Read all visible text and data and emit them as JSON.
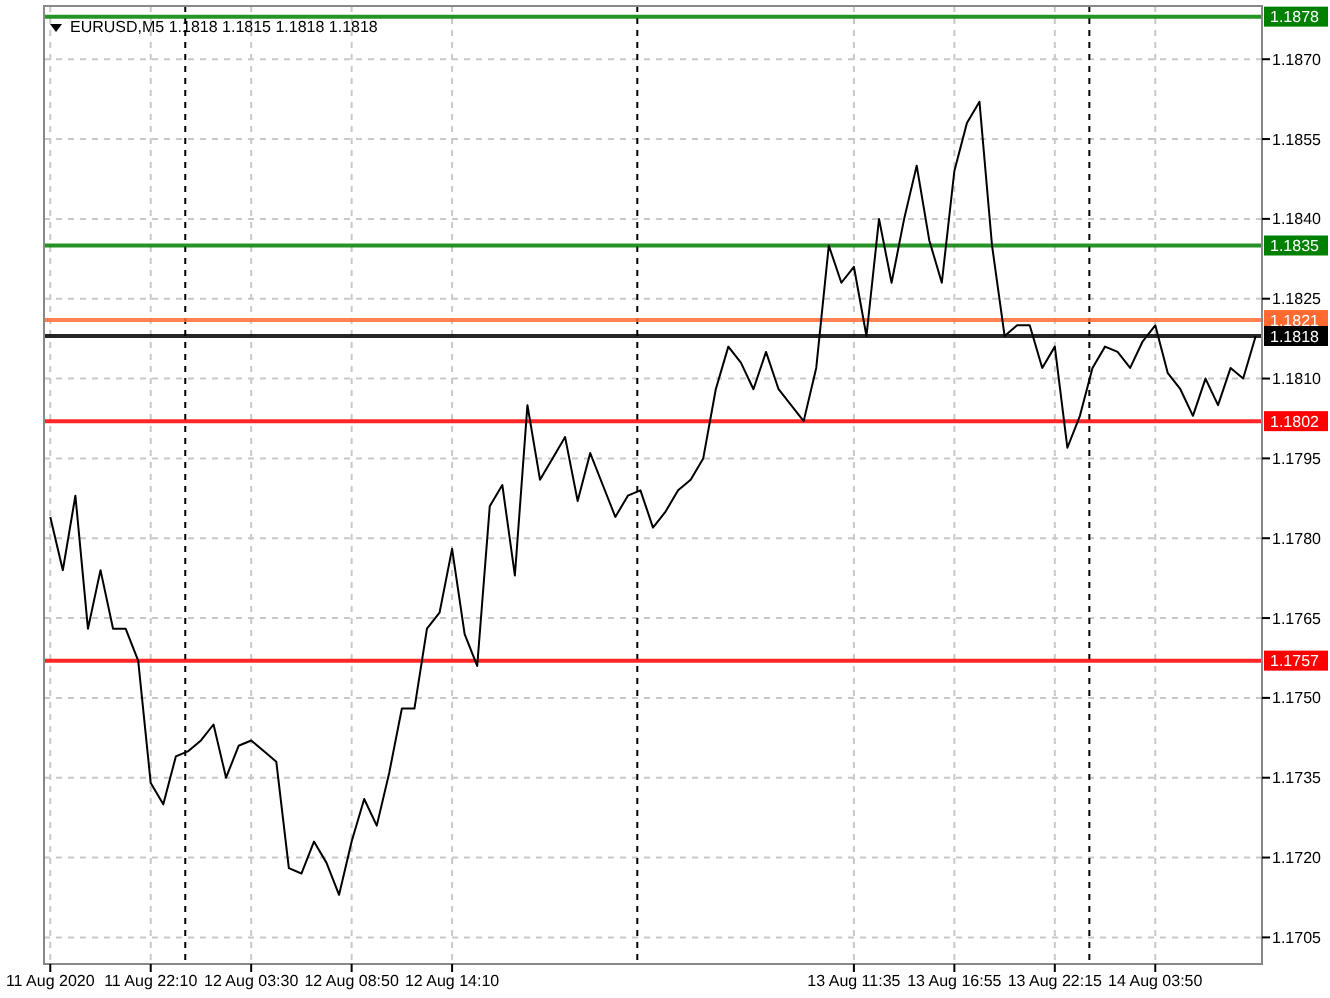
{
  "chart_data": {
    "type": "line",
    "title": "EURUSD,M5  1.1818 1.1815 1.1818 1.1818",
    "categories": [
      "11 Aug 2020",
      null,
      null,
      null,
      null,
      null,
      null,
      null,
      "11 Aug 22:10",
      null,
      null,
      null,
      null,
      null,
      null,
      null,
      "12 Aug 03:30",
      null,
      null,
      null,
      null,
      null,
      null,
      null,
      "12 Aug 08:50",
      null,
      null,
      null,
      null,
      null,
      null,
      null,
      "12 Aug 14:10",
      null,
      null,
      null,
      null,
      null,
      null,
      null,
      null,
      null,
      null,
      null,
      null,
      null,
      null,
      null,
      null,
      null,
      null,
      null,
      null,
      null,
      null,
      null,
      null,
      null,
      null,
      null,
      null,
      null,
      null,
      null,
      "13 Aug 11:35",
      null,
      null,
      null,
      null,
      null,
      null,
      null,
      "13 Aug 16:55",
      null,
      null,
      null,
      null,
      null,
      null,
      null,
      "13 Aug 22:15",
      null,
      null,
      null,
      null,
      null,
      null,
      null,
      "14 Aug 03:50",
      null,
      null,
      null,
      null,
      null,
      null,
      null,
      null
    ],
    "series": [
      {
        "color": "#000000",
        "values": [
          1.1784,
          1.1774,
          1.1788,
          1.1763,
          1.1774,
          1.1763,
          1.1763,
          1.1757,
          1.1734,
          1.173,
          1.1739,
          1.174,
          1.1742,
          1.1745,
          1.1735,
          1.1741,
          1.1742,
          1.174,
          1.1738,
          1.1718,
          1.1717,
          1.1723,
          1.1719,
          1.1713,
          1.1723,
          1.1731,
          1.1726,
          1.1736,
          1.1748,
          1.1748,
          1.1763,
          1.1766,
          1.1778,
          1.1762,
          1.1756,
          1.1786,
          1.179,
          1.1773,
          1.1805,
          1.1791,
          1.1795,
          1.1799,
          1.1787,
          1.1796,
          1.179,
          1.1784,
          1.1788,
          1.1789,
          1.1782,
          1.1785,
          1.1789,
          1.1791,
          1.1795,
          1.1808,
          1.1816,
          1.1813,
          1.1808,
          1.1815,
          1.1808,
          1.1805,
          1.1802,
          1.1812,
          1.1835,
          1.1828,
          1.1831,
          1.1818,
          1.184,
          1.1828,
          1.184,
          1.185,
          1.1836,
          1.1828,
          1.1849,
          1.1858,
          1.1862,
          1.1835,
          1.1818,
          1.182,
          1.182,
          1.1812,
          1.1816,
          1.1797,
          1.1803,
          1.1812,
          1.1816,
          1.1815,
          1.1812,
          1.1817,
          1.182,
          1.1811,
          1.1808,
          1.1803,
          1.181,
          1.1805,
          1.1812,
          1.181,
          1.1818
        ]
      }
    ],
    "ylim": [
      1.17,
      1.188
    ],
    "yticks": [
      1.1705,
      {
        "value": 1.172,
        "label": "1.1720"
      },
      1.1735,
      {
        "value": 1.175,
        "label": "1.1750"
      },
      1.1765,
      {
        "value": 1.178,
        "label": "1.1780"
      },
      1.1795,
      {
        "value": 1.181,
        "label": "1.1810"
      },
      1.1825,
      {
        "value": 1.184,
        "label": "1.1840"
      },
      1.1855,
      {
        "value": 1.187,
        "label": "1.1870"
      }
    ],
    "grid": true,
    "ref_lines": [
      {
        "axis": "y",
        "value": 1.1878,
        "label": "1.1878",
        "color": "#008000"
      },
      {
        "axis": "y",
        "value": 1.1835,
        "label": "1.1835",
        "color": "#008000"
      },
      {
        "axis": "y",
        "value": 1.1821,
        "label": "1.1821",
        "color": "#ff6a33"
      },
      {
        "axis": "y",
        "value": 1.1818,
        "label": "1.1818",
        "color": "#000000"
      },
      {
        "axis": "y",
        "value": 1.1802,
        "label": "1.1802",
        "color": "#ff0000"
      },
      {
        "axis": "y",
        "value": 1.1757,
        "label": "1.1757",
        "color": "#ff0000"
      }
    ]
  }
}
